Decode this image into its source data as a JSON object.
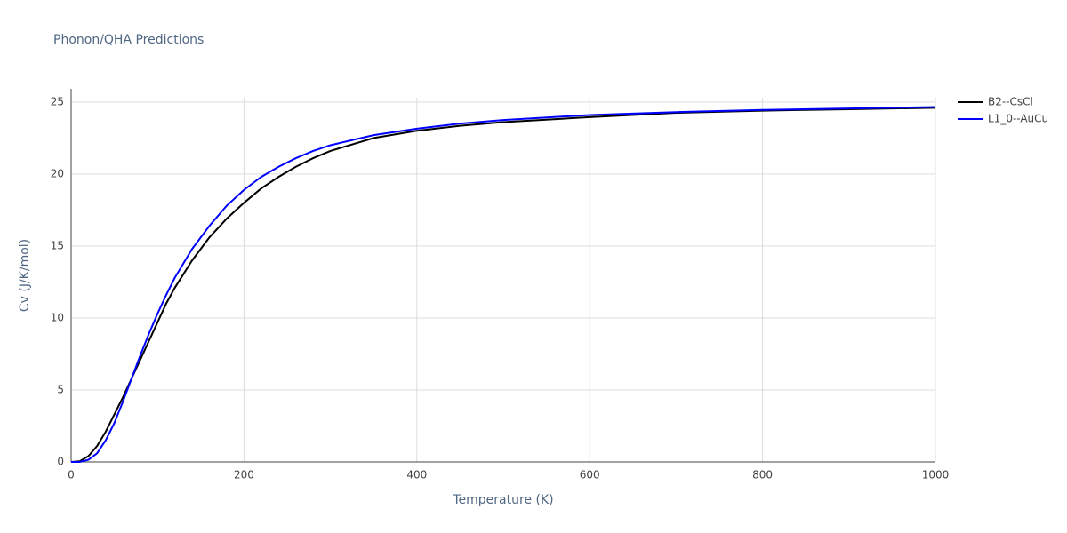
{
  "chart_data": {
    "type": "line",
    "title": "Phonon/QHA Predictions",
    "x_label": "Temperature (K)",
    "y_label": "Cv (J/K/mol)",
    "x": [
      0,
      10,
      20,
      30,
      40,
      50,
      60,
      70,
      80,
      90,
      100,
      110,
      120,
      140,
      160,
      180,
      200,
      220,
      240,
      260,
      280,
      300,
      350,
      400,
      450,
      500,
      600,
      700,
      800,
      900,
      1000
    ],
    "series": [
      {
        "name": "B2--CsCl",
        "color": "#000000",
        "values": [
          0,
          0.05,
          0.4,
          1.1,
          2.1,
          3.3,
          4.5,
          5.8,
          7.1,
          8.4,
          9.7,
          11.0,
          12.1,
          14.0,
          15.6,
          16.9,
          18.0,
          19.0,
          19.8,
          20.5,
          21.1,
          21.6,
          22.5,
          23.0,
          23.35,
          23.6,
          23.95,
          24.25,
          24.4,
          24.5,
          24.6
        ]
      },
      {
        "name": "L1_0--AuCu",
        "color": "#0000ff",
        "values": [
          0,
          0.0,
          0.15,
          0.6,
          1.5,
          2.7,
          4.2,
          5.8,
          7.4,
          8.9,
          10.3,
          11.6,
          12.8,
          14.8,
          16.4,
          17.8,
          18.9,
          19.8,
          20.5,
          21.1,
          21.6,
          22.0,
          22.7,
          23.15,
          23.5,
          23.75,
          24.1,
          24.3,
          24.45,
          24.55,
          24.65
        ]
      }
    ],
    "xlim": [
      0,
      1000
    ],
    "xticks": [
      0,
      200,
      400,
      600,
      800,
      1000
    ],
    "ylim": [
      0,
      25.3
    ],
    "yticks": [
      0,
      5,
      10,
      15,
      20,
      25
    ],
    "grid": true,
    "legend": "right"
  }
}
